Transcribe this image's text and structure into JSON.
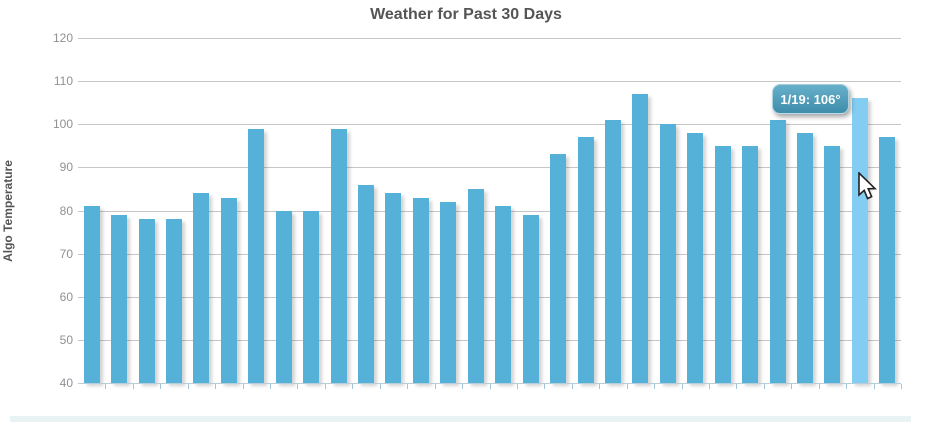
{
  "chart_data": {
    "type": "bar",
    "title": "Weather for Past 30 Days",
    "xlabel": "",
    "ylabel": "Algo Temperature",
    "ylim": [
      40,
      120
    ],
    "y_ticks": [
      40,
      50,
      60,
      70,
      80,
      90,
      100,
      110,
      120
    ],
    "x_tick_labels": [],
    "grid": "horizontal lines on",
    "legend": "none",
    "values": [
      81,
      79,
      78,
      78,
      84,
      83,
      99,
      80,
      80,
      99,
      86,
      84,
      83,
      82,
      85,
      81,
      79,
      93,
      97,
      101,
      107,
      100,
      98,
      95,
      95,
      101,
      98,
      95,
      106,
      97
    ],
    "highlighted_index": 28,
    "tooltip_text": "1/19: 106°",
    "colors": {
      "bar": "#55b1d8",
      "bar_highlight": "#82cdf1",
      "gridline": "#c6c6c6",
      "axis_line": "#b7cdda",
      "axis_tick": "#9fc6dd",
      "title_text": "#555555",
      "tick_label_text": "#8f9194",
      "tooltip_text_color": "#ffffff",
      "tooltip_bg_top": "#68b0ca",
      "tooltip_bg_bottom": "#3d8dab",
      "bottom_strip": "#e9f3f4"
    }
  }
}
